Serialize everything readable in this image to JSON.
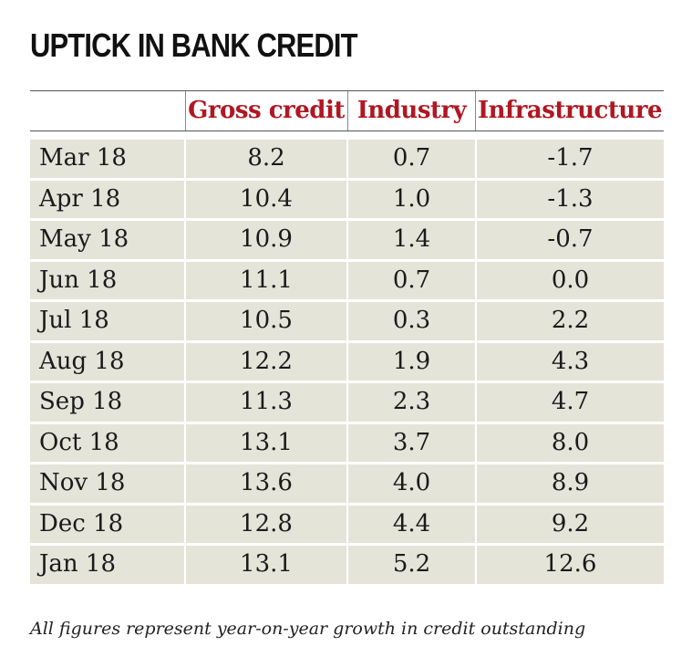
{
  "title": "UPTICK IN BANK CREDIT",
  "note": "All figures represent year-on-year growth in credit outstanding",
  "colors": {
    "header_text": "#b01722",
    "row_background": "#e5e4d9"
  },
  "chart_data": {
    "type": "table",
    "title": "UPTICK IN BANK CREDIT",
    "columns": [
      "",
      "Gross credit",
      "Industry",
      "Infrastructure"
    ],
    "rows": [
      {
        "month": "Mar 18",
        "values": [
          "8.2",
          "0.7",
          "-1.7"
        ]
      },
      {
        "month": "Apr 18",
        "values": [
          "10.4",
          "1.0",
          "-1.3"
        ]
      },
      {
        "month": "May 18",
        "values": [
          "10.9",
          "1.4",
          "-0.7"
        ]
      },
      {
        "month": "Jun 18",
        "values": [
          "11.1",
          "0.7",
          "0.0"
        ]
      },
      {
        "month": "Jul 18",
        "values": [
          "10.5",
          "0.3",
          "2.2"
        ]
      },
      {
        "month": "Aug 18",
        "values": [
          "12.2",
          "1.9",
          "4.3"
        ]
      },
      {
        "month": "Sep 18",
        "values": [
          "11.3",
          "2.3",
          "4.7"
        ]
      },
      {
        "month": "Oct 18",
        "values": [
          "13.1",
          "3.7",
          "8.0"
        ]
      },
      {
        "month": "Nov 18",
        "values": [
          "13.6",
          "4.0",
          "8.9"
        ]
      },
      {
        "month": "Dec 18",
        "values": [
          "12.8",
          "4.4",
          "9.2"
        ]
      },
      {
        "month": "Jan 18",
        "values": [
          "13.1",
          "5.2",
          "12.6"
        ]
      }
    ]
  }
}
